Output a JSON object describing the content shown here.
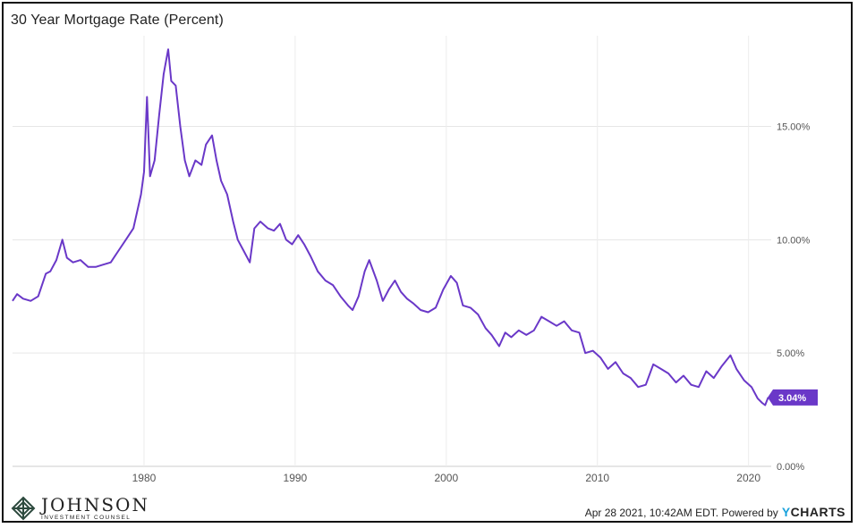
{
  "chart_data": {
    "type": "line",
    "title": "30 Year Mortgage Rate (Percent)",
    "xlabel": "",
    "ylabel": "",
    "x_ticks": [
      "1980",
      "1990",
      "2000",
      "2010",
      "2020"
    ],
    "y_ticks": [
      "0.00%",
      "5.00%",
      "10.00%",
      "15.00%"
    ],
    "xlim": [
      1971.3,
      2021.5
    ],
    "ylim": [
      0,
      19
    ],
    "grid": "horizontal",
    "last_value_label": "3.04%",
    "line_color": "#6a38c8",
    "series": [
      {
        "x": [
          1971.3,
          1971.6,
          1972.0,
          1972.5,
          1973.0,
          1973.5,
          1973.8,
          1974.2,
          1974.6,
          1974.9,
          1975.3,
          1975.8,
          1976.3,
          1976.8,
          1977.3,
          1977.8,
          1978.3,
          1978.8,
          1979.3,
          1979.8,
          1980.0,
          1980.2,
          1980.4,
          1980.7,
          1981.0,
          1981.3,
          1981.6,
          1981.8,
          1982.1,
          1982.4,
          1982.7,
          1983.0,
          1983.4,
          1983.8,
          1984.1,
          1984.5,
          1984.8,
          1985.1,
          1985.5,
          1985.9,
          1986.2,
          1986.6,
          1987.0,
          1987.3,
          1987.7,
          1988.2,
          1988.6,
          1989.0,
          1989.4,
          1989.8,
          1990.2,
          1990.6,
          1991.0,
          1991.5,
          1992.0,
          1992.5,
          1993.0,
          1993.5,
          1993.8,
          1994.2,
          1994.6,
          1994.9,
          1995.4,
          1995.8,
          1996.2,
          1996.6,
          1997.0,
          1997.4,
          1997.8,
          1998.3,
          1998.8,
          1999.3,
          1999.8,
          2000.3,
          2000.7,
          2001.1,
          2001.6,
          2002.1,
          2002.6,
          2003.0,
          2003.5,
          2003.9,
          2004.3,
          2004.8,
          2005.3,
          2005.8,
          2006.3,
          2006.8,
          2007.3,
          2007.8,
          2008.3,
          2008.8,
          2009.2,
          2009.7,
          2010.2,
          2010.7,
          2011.2,
          2011.7,
          2012.2,
          2012.7,
          2013.2,
          2013.7,
          2014.2,
          2014.7,
          2015.2,
          2015.7,
          2016.2,
          2016.7,
          2017.2,
          2017.7,
          2018.2,
          2018.8,
          2019.2,
          2019.7,
          2020.2,
          2020.6,
          2020.9,
          2021.1,
          2021.3
        ],
        "y": [
          7.3,
          7.6,
          7.4,
          7.3,
          7.5,
          8.5,
          8.6,
          9.1,
          10.0,
          9.2,
          9.0,
          9.1,
          8.8,
          8.8,
          8.9,
          9.0,
          9.5,
          10.0,
          10.5,
          12.0,
          13.0,
          16.3,
          12.8,
          13.5,
          15.5,
          17.3,
          18.4,
          17.0,
          16.8,
          15.0,
          13.5,
          12.8,
          13.5,
          13.3,
          14.2,
          14.6,
          13.5,
          12.6,
          12.0,
          10.8,
          10.0,
          9.5,
          9.0,
          10.5,
          10.8,
          10.5,
          10.4,
          10.7,
          10.0,
          9.8,
          10.2,
          9.8,
          9.3,
          8.6,
          8.2,
          8.0,
          7.5,
          7.1,
          6.9,
          7.5,
          8.6,
          9.1,
          8.2,
          7.3,
          7.8,
          8.2,
          7.7,
          7.4,
          7.2,
          6.9,
          6.8,
          7.0,
          7.8,
          8.4,
          8.1,
          7.1,
          7.0,
          6.7,
          6.1,
          5.8,
          5.3,
          5.9,
          5.7,
          6.0,
          5.8,
          6.0,
          6.6,
          6.4,
          6.2,
          6.4,
          6.0,
          5.9,
          5.0,
          5.1,
          4.8,
          4.3,
          4.6,
          4.1,
          3.9,
          3.5,
          3.6,
          4.5,
          4.3,
          4.1,
          3.7,
          4.0,
          3.6,
          3.5,
          4.2,
          3.9,
          4.4,
          4.9,
          4.3,
          3.8,
          3.5,
          3.0,
          2.8,
          2.7,
          3.04
        ]
      }
    ]
  },
  "footer": {
    "timestamp": "Apr 28 2021, 10:42AM EDT. Powered by",
    "brand_y": "Y",
    "brand_rest": "CHARTS"
  },
  "logo": {
    "name": "JOHNSON",
    "sub": "INVESTMENT COUNSEL"
  }
}
